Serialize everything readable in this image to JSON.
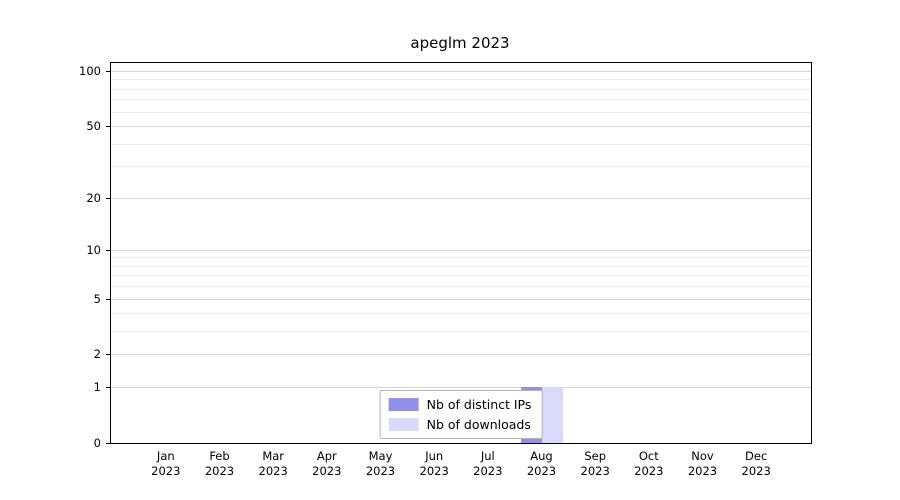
{
  "chart_data": {
    "type": "bar",
    "title": "apeglm 2023",
    "categories": [
      "Jan 2023",
      "Feb 2023",
      "Mar 2023",
      "Apr 2023",
      "May 2023",
      "Jun 2023",
      "Jul 2023",
      "Aug 2023",
      "Sep 2023",
      "Oct 2023",
      "Nov 2023",
      "Dec 2023"
    ],
    "series": [
      {
        "name": "Nb of distinct IPs",
        "values": [
          0,
          0,
          0,
          0,
          0,
          0,
          0,
          1,
          0,
          0,
          0,
          0
        ],
        "color": "#9191e9"
      },
      {
        "name": "Nb of downloads",
        "values": [
          0,
          0,
          0,
          0,
          0,
          0,
          0,
          1,
          0,
          0,
          0,
          0
        ],
        "color": "#d9d9fa"
      }
    ],
    "y_ticks": [
      0,
      1,
      2,
      5,
      10,
      20,
      50,
      100
    ],
    "y_scale": "log1p",
    "ylim": [
      0,
      100
    ],
    "minor_grid_values": [
      1,
      2,
      3,
      4,
      5,
      6,
      7,
      8,
      9,
      10,
      20,
      30,
      40,
      50,
      60,
      70,
      80,
      90,
      100
    ],
    "grid": true,
    "legend_position": "bottom-center-inside",
    "xlabel": "",
    "ylabel": ""
  }
}
